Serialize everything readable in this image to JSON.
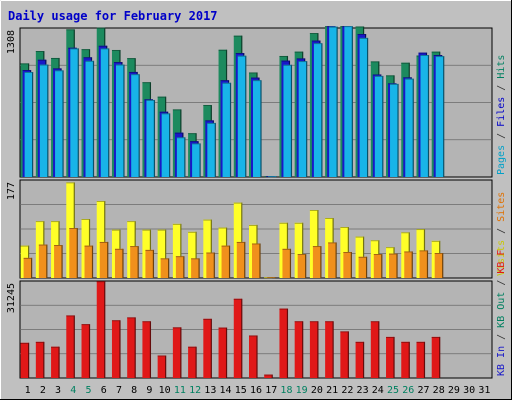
{
  "chart_data": {
    "type": "bar",
    "title": "Daily usage for February 2017",
    "days": [
      "1",
      "2",
      "3",
      "4",
      "5",
      "6",
      "7",
      "8",
      "9",
      "10",
      "11",
      "12",
      "13",
      "14",
      "15",
      "16",
      "17",
      "18",
      "19",
      "20",
      "21",
      "22",
      "23",
      "24",
      "25",
      "26",
      "27",
      "28",
      "29",
      "30",
      "31"
    ],
    "weekend_days": [
      4,
      5,
      11,
      12,
      18,
      19,
      25,
      26
    ],
    "panels": [
      {
        "id": "top",
        "ymax": 1308,
        "ymax_label": "1308",
        "ylabel_parts": [
          {
            "text": "Pages",
            "color": "#00a0c8"
          },
          {
            "text": " / ",
            "color": "#333333"
          },
          {
            "text": "Files",
            "color": "#0000c8"
          },
          {
            "text": " / ",
            "color": "#333333"
          },
          {
            "text": "Hits",
            "color": "#008060"
          }
        ],
        "series": [
          {
            "name": "Hits",
            "color": "#1c8a5e",
            "values": [
              1025,
              1136,
              1074,
              1332,
              1153,
              1346,
              1146,
              1072,
              855,
              725,
              610,
              395,
              649,
              1148,
              1275,
              943,
              0,
              1092,
              1131,
              1298,
              1473,
              1621,
              1358,
              1043,
              917,
              1031,
              1096,
              1131,
              0,
              0,
              0
            ]
          },
          {
            "name": "Files",
            "color": "#1818c8",
            "values": [
              965,
              1058,
              980,
              1166,
              1080,
              1184,
              1037,
              948,
              701,
              589,
              400,
              323,
              511,
              873,
              1118,
              897,
              0,
              1050,
              1070,
              1231,
              1371,
              1539,
              1290,
              925,
              845,
              899,
              1122,
              1100,
              0,
              0,
              0
            ]
          },
          {
            "name": "Pages",
            "color": "#18b4e8",
            "values": [
              947,
              1014,
              962,
              1160,
              1048,
              1160,
              1014,
              927,
              695,
              574,
              358,
              303,
              488,
              850,
              1094,
              873,
              0,
              1012,
              1045,
              1207,
              1356,
              1527,
              1255,
              912,
              840,
              887,
              1100,
              1090,
              0,
              0,
              0
            ]
          }
        ]
      },
      {
        "id": "middle",
        "ymax": 177,
        "ymax_label": "177",
        "ylabel_parts": [
          {
            "text": "Visits",
            "color": "#c8c800"
          },
          {
            "text": " / ",
            "color": "#333333"
          },
          {
            "text": "Sites",
            "color": "#e07000"
          }
        ],
        "series": [
          {
            "name": "Visits",
            "color": "#ffff28",
            "values": [
              61,
              107,
              107,
              180,
              111,
              145,
              91,
              107,
              91,
              91,
              102,
              87,
              110,
              95,
              142,
              100,
              0,
              104,
              104,
              128,
              113,
              96,
              78,
              71,
              58,
              86,
              92,
              70,
              0,
              0,
              0
            ]
          },
          {
            "name": "Sites",
            "color": "#f0901c",
            "values": [
              38,
              63,
              62,
              94,
              61,
              68,
              55,
              60,
              53,
              37,
              41,
              37,
              48,
              61,
              68,
              65,
              0,
              55,
              45,
              60,
              67,
              49,
              40,
              45,
              46,
              50,
              52,
              47,
              0,
              0,
              0
            ]
          }
        ]
      },
      {
        "id": "bottom",
        "ymax": 31245,
        "ymax_label": "31245",
        "ylabel_parts": [
          {
            "text": "KB In",
            "color": "#1818c8"
          },
          {
            "text": " / ",
            "color": "#333333"
          },
          {
            "text": "KB Out",
            "color": "#008060"
          },
          {
            "text": " / ",
            "color": "#333333"
          },
          {
            "text": "KB F",
            "color": "#e01818"
          }
        ],
        "series": [
          {
            "name": "KB F",
            "color": "#e01818",
            "values": [
              11826,
              12153,
              10515,
              21029,
              18085,
              33600,
              19396,
              20369,
              19060,
              7564,
              17022,
              10515,
              19888,
              16947,
              26622,
              14294,
              1158,
              23320,
              19060,
              19060,
              19060,
              15664,
              12153,
              19060,
              13814,
              12153,
              12153,
              13814,
              0,
              0,
              0
            ]
          }
        ]
      }
    ]
  }
}
